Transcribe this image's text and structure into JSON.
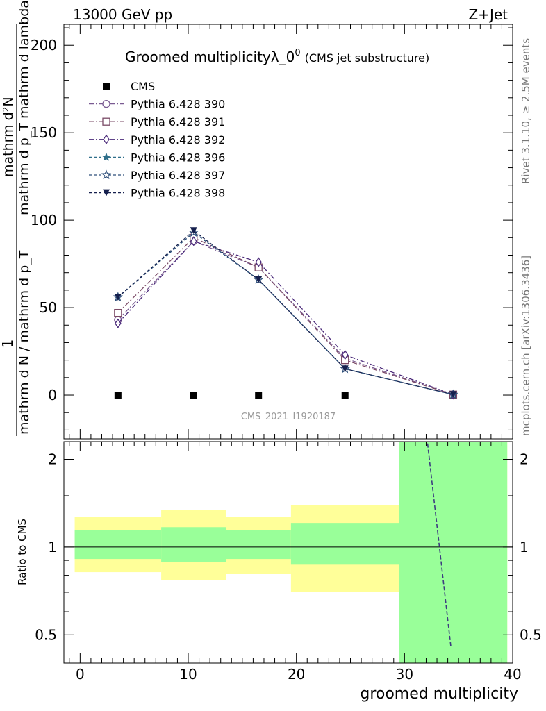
{
  "header": {
    "left": "13000 GeV pp",
    "right": "Z+Jet"
  },
  "side_labels": {
    "rivet": "Rivet 3.1.10, ≥ 2.5M events",
    "mcplots": "mcplots.cern.ch [arXiv:1306.3436]"
  },
  "chart_data": [
    {
      "type": "line",
      "title": "Groomed multiplicityλ_0",
      "title_sup": "0",
      "subtitle": "(CMS jet substructure)",
      "watermark": "CMS_2021_I1920187",
      "ylabel_num": "mathrm d²N",
      "ylabel_den": "mathrm d p_T mathrm d lambda",
      "ylabel_prefix_num": "1",
      "ylabel_prefix_den": "mathrm d N / mathrm d p_T",
      "ylim": [
        -25,
        212
      ],
      "yticks": [
        0,
        50,
        100,
        150,
        200
      ],
      "xlim": [
        -1.5,
        40
      ],
      "legend_position": "top-left",
      "series": [
        {
          "name": "CMS",
          "color": "#000000",
          "marker": "square-filled",
          "dash": "none",
          "x": [
            3.5,
            10.5,
            16.5,
            24.5,
            34.5
          ],
          "y": [
            0,
            0,
            0,
            0,
            0
          ]
        },
        {
          "name": "Pythia 6.428 390",
          "color": "#7a5b92",
          "marker": "circle-open",
          "dash": "7,3,2,3",
          "x": [
            3.5,
            10.5,
            16.5,
            24.5,
            34.5
          ],
          "y": [
            43,
            88,
            73,
            21,
            0.3
          ]
        },
        {
          "name": "Pythia 6.428 391",
          "color": "#7a4a66",
          "marker": "square-open",
          "dash": "7,3,2,3",
          "x": [
            3.5,
            10.5,
            16.5,
            24.5,
            34.5
          ],
          "y": [
            47,
            90,
            73,
            20,
            0.3
          ]
        },
        {
          "name": "Pythia 6.428 392",
          "color": "#4b2a7a",
          "marker": "diamond-open",
          "dash": "7,3,2,3",
          "x": [
            3.5,
            10.5,
            16.5,
            24.5,
            34.5
          ],
          "y": [
            41,
            88,
            76,
            23,
            0.3
          ]
        },
        {
          "name": "Pythia 6.428 396",
          "color": "#2f6f8a",
          "marker": "star-filled",
          "dash": "4,3",
          "x": [
            3.5,
            10.5,
            16.5,
            24.5,
            34.5
          ],
          "y": [
            56,
            93,
            66,
            15,
            0.3
          ]
        },
        {
          "name": "Pythia 6.428 397",
          "color": "#2e4f7a",
          "marker": "star-open",
          "dash": "4,3",
          "x": [
            3.5,
            10.5,
            16.5,
            24.5,
            34.5
          ],
          "y": [
            56,
            93,
            66,
            15,
            0.3
          ]
        },
        {
          "name": "Pythia 6.428 398",
          "color": "#16204e",
          "marker": "triangle-down-filled",
          "dash": "4,3",
          "x": [
            3.5,
            10.5,
            16.5,
            24.5,
            34.5
          ],
          "y": [
            56,
            94,
            66,
            15,
            0.3
          ]
        }
      ]
    },
    {
      "type": "area",
      "ylabel": "Ratio to CMS",
      "xlabel": "groomed multiplicity",
      "ylim": [
        0.4,
        2.3
      ],
      "yticks": [
        0.5,
        1,
        2
      ],
      "xlim": [
        -1.5,
        40
      ],
      "xticks": [
        0,
        10,
        20,
        30,
        40
      ],
      "reference": 1,
      "bands": [
        {
          "x0": -0.5,
          "x1": 7.5,
          "yellow": [
            0.82,
            1.27
          ],
          "green": [
            0.91,
            1.14
          ]
        },
        {
          "x0": 7.5,
          "x1": 13.5,
          "yellow": [
            0.77,
            1.34
          ],
          "green": [
            0.89,
            1.17
          ]
        },
        {
          "x0": 13.5,
          "x1": 19.5,
          "yellow": [
            0.81,
            1.27
          ],
          "green": [
            0.91,
            1.14
          ]
        },
        {
          "x0": 19.5,
          "x1": 29.5,
          "yellow": [
            0.7,
            1.39
          ],
          "green": [
            0.87,
            1.21
          ]
        },
        {
          "x0": 29.5,
          "x1": 39.5,
          "yellow": [
            0.0,
            9.9
          ],
          "green": [
            0.0,
            9.9
          ]
        }
      ],
      "band_colors": {
        "yellow": "#ffff99",
        "green": "#99ff99"
      },
      "ratio_line": {
        "x": [
          32,
          34.3
        ],
        "y": [
          2.5,
          0.45
        ],
        "color": "#3d3d80"
      }
    }
  ]
}
